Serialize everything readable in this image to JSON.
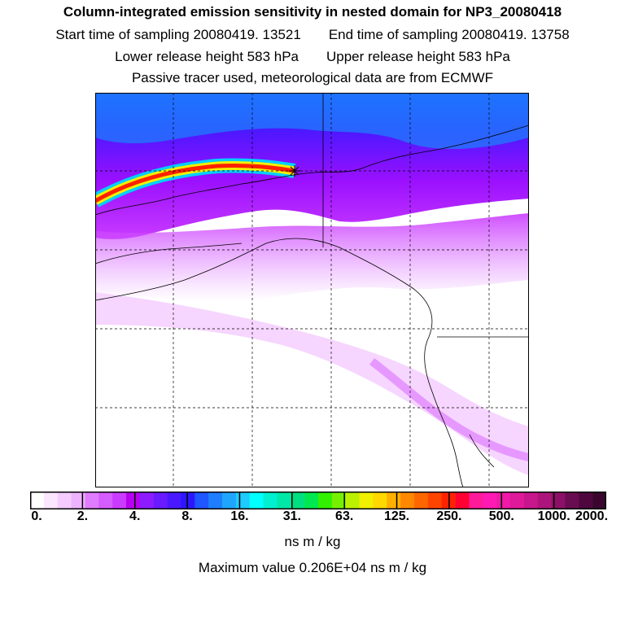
{
  "header": {
    "title": "Column-integrated emission sensitivity in nested domain for NP3_20080418",
    "start_label": "Start time of sampling 20080419. 13521",
    "end_label": "End time of sampling 20080419. 13758",
    "lower_label": "Lower release height  583 hPa",
    "upper_label": "Upper release height  583 hPa",
    "note": "Passive tracer used, meteorological data are from ECMWF"
  },
  "colorbar": {
    "tick_labels": [
      "0.",
      "2.",
      "4.",
      "8.",
      "16.",
      "31.",
      "63.",
      "125.",
      "250.",
      "500.",
      "1000.",
      "2000."
    ],
    "colors": [
      "#ffffff",
      "#fbe6ff",
      "#f5ccff",
      "#eeb3ff",
      "#e07cff",
      "#d55cff",
      "#c93bff",
      "#b800f0",
      "#8c1cff",
      "#6a1aff",
      "#4a18ff",
      "#2c16ff",
      "#1e56ff",
      "#1e7eff",
      "#1ea6ff",
      "#1ecbff",
      "#00ffff",
      "#00f0d0",
      "#00e8a8",
      "#00e080",
      "#00e850",
      "#33f000",
      "#77f000",
      "#bbf000",
      "#f0f000",
      "#ffd800",
      "#ffb000",
      "#ff8800",
      "#ff6600",
      "#ff4400",
      "#ff2200",
      "#ff0033",
      "#ff1a99",
      "#ff1ab3",
      "#f01aa6",
      "#e0189a",
      "#c8168c",
      "#ad147c",
      "#8c1066",
      "#6a0c52",
      "#4e083e",
      "#3a062e"
    ],
    "units": "ns m / kg"
  },
  "footer": {
    "max_value": "Maximum value  0.206E+04 ns m / kg"
  }
}
